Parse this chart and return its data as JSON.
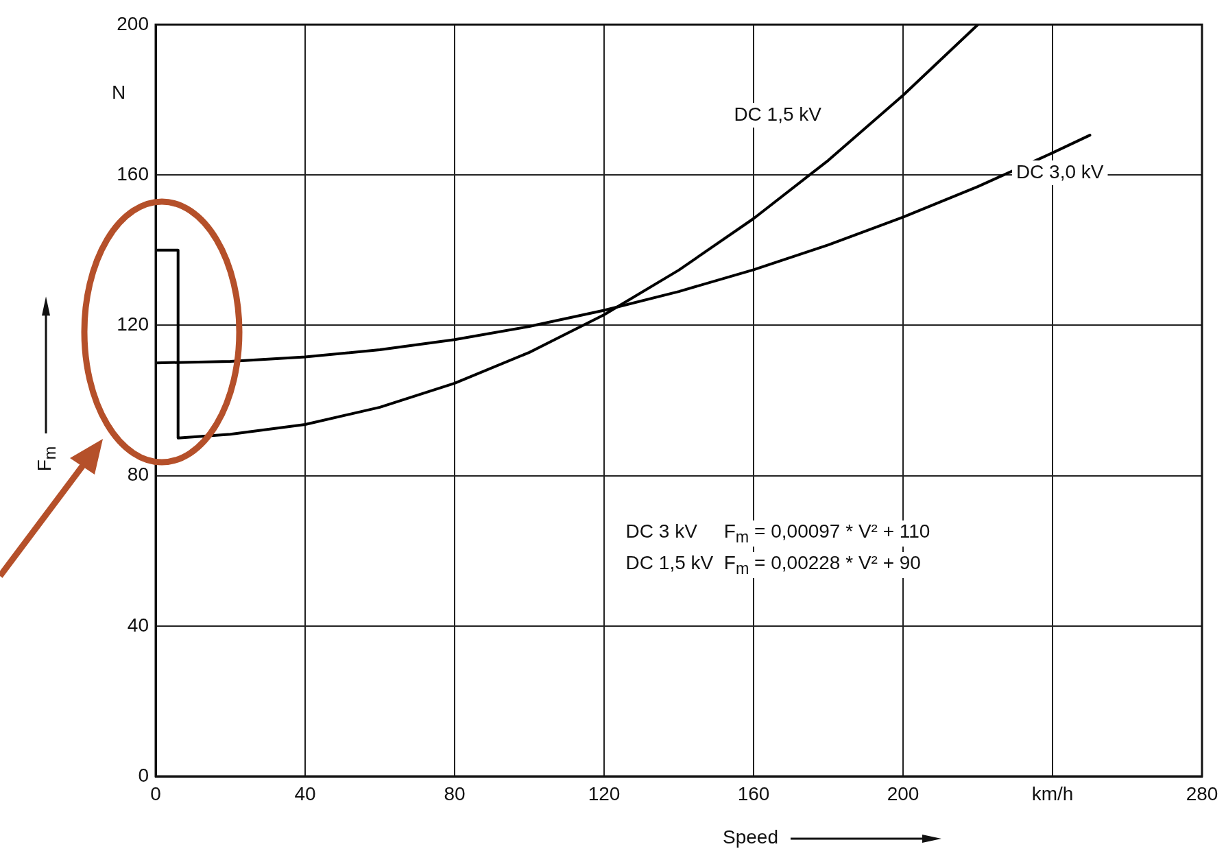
{
  "chart_data": {
    "type": "line",
    "xlabel": "Speed",
    "ylabel": "F$_{m}$",
    "xlim": [
      0,
      280
    ],
    "xticks": [
      0,
      40,
      80,
      120,
      160,
      200,
      {
        "value": 240,
        "label": "km/h"
      },
      280
    ],
    "ylim": [
      0,
      200
    ],
    "yticks": [
      0,
      40,
      80,
      120,
      160,
      200
    ],
    "grid": true,
    "legend": false,
    "marker": "none",
    "line_style": "solid",
    "annotations": [
      "N",
      "DC 3 kV     F$_{m}$ = 0,00097 * V² + 110",
      "DC 1,5 kV  F$_{m}$ = 0,00228 * V² + 90"
    ],
    "series": [
      {
        "name": "DC 1,5 kV",
        "color": "#000000",
        "x": [
          0,
          6,
          6,
          20,
          40,
          60,
          80,
          100,
          120,
          140,
          160,
          180,
          200,
          220
        ],
        "values": [
          140,
          140,
          90,
          91,
          93.6,
          98.2,
          104.6,
          112.8,
          122.8,
          134.7,
          148.4,
          163.9,
          181.2,
          200
        ]
      },
      {
        "name": "DC 3,0 kV",
        "color": "#000000",
        "x": [
          0,
          20,
          40,
          60,
          80,
          100,
          120,
          140,
          160,
          180,
          200,
          220,
          240,
          250
        ],
        "values": [
          110,
          110.4,
          111.6,
          113.5,
          116.2,
          119.7,
          124,
          129,
          134.8,
          141.4,
          148.8,
          156.9,
          165.9,
          170.6
        ]
      }
    ]
  }
}
